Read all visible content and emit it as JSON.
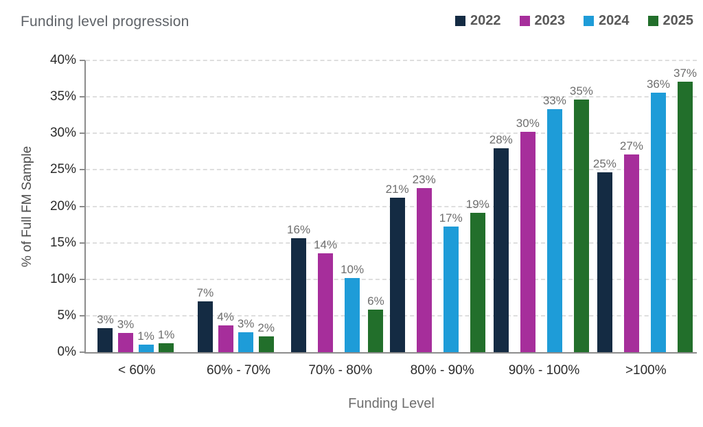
{
  "header": {
    "title": "Funding level progression"
  },
  "legend": {
    "position": "top-right",
    "items": [
      {
        "label": "2022",
        "color": "#142B43"
      },
      {
        "label": "2023",
        "color": "#A62E9B"
      },
      {
        "label": "2024",
        "color": "#1E9CD8"
      },
      {
        "label": "2025",
        "color": "#226F2B"
      }
    ]
  },
  "chart_data": {
    "type": "bar",
    "title": "Funding level progression",
    "categories": [
      "< 60%",
      "60% - 70%",
      "70% - 80%",
      "80% - 90%",
      "90% - 100%",
      ">100%"
    ],
    "series": [
      {
        "name": "2022",
        "color": "#142B43",
        "values": [
          3.3,
          7.0,
          15.6,
          21.2,
          28.0,
          24.7
        ],
        "labels": [
          "3%",
          "7%",
          "16%",
          "21%",
          "28%",
          "25%"
        ]
      },
      {
        "name": "2023",
        "color": "#A62E9B",
        "values": [
          2.6,
          3.7,
          13.6,
          22.5,
          30.2,
          27.1
        ],
        "labels": [
          "3%",
          "4%",
          "14%",
          "23%",
          "30%",
          "27%"
        ]
      },
      {
        "name": "2024",
        "color": "#1E9CD8",
        "values": [
          1.0,
          2.7,
          10.2,
          17.2,
          33.3,
          35.6
        ],
        "labels": [
          "1%",
          "3%",
          "10%",
          "17%",
          "33%",
          "36%"
        ]
      },
      {
        "name": "2025",
        "color": "#226F2B",
        "values": [
          1.2,
          2.2,
          5.8,
          19.1,
          34.6,
          37.1
        ],
        "labels": [
          "1%",
          "2%",
          "6%",
          "19%",
          "35%",
          "37%"
        ]
      }
    ],
    "xlabel": "Funding Level",
    "ylabel": "% of Full FM Sample",
    "ylim": [
      0,
      40
    ],
    "ytick_step": 5,
    "yticks": [
      "0%",
      "5%",
      "10%",
      "15%",
      "20%",
      "25%",
      "30%",
      "35%",
      "40%"
    ],
    "grid": "horizontal-dashed",
    "legend_position": "top-right",
    "colors": {
      "axis_line": "#8c8c8c",
      "gridline": "#dedede",
      "tick_label": "#2b2b2b",
      "data_label": "#6e6e6e",
      "title_text": "#5f6368",
      "legend_text": "#595959"
    }
  }
}
